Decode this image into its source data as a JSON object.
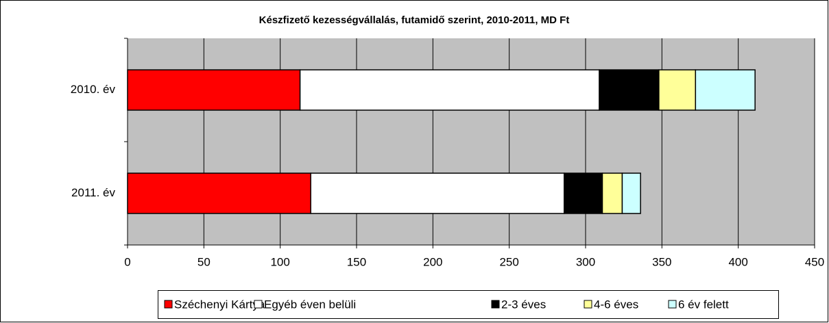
{
  "chart_data": {
    "type": "stacked-bar-horizontal",
    "title": "Készfizető kezességvállalás, futamidő szerint, 2010-2011, MD Ft",
    "categories": [
      "2010. év",
      "2011. év"
    ],
    "series": [
      {
        "name": "Széchenyi Kártya",
        "color": "#ff0000",
        "values": [
          113,
          120
        ]
      },
      {
        "name": "Egyéb éven belüli",
        "color": "#ffffff",
        "values": [
          196,
          166
        ]
      },
      {
        "name": "2-3 éves",
        "color": "#000000",
        "values": [
          39,
          25
        ]
      },
      {
        "name": "4-6 éves",
        "color": "#ffff99",
        "values": [
          24,
          13
        ]
      },
      {
        "name": "6 év felett",
        "color": "#ccffff",
        "values": [
          39,
          12
        ]
      }
    ],
    "xlim": [
      0,
      450
    ],
    "xticks": [
      0,
      50,
      100,
      150,
      200,
      250,
      300,
      350,
      400,
      450
    ],
    "grid": true,
    "legend": "bottom"
  }
}
